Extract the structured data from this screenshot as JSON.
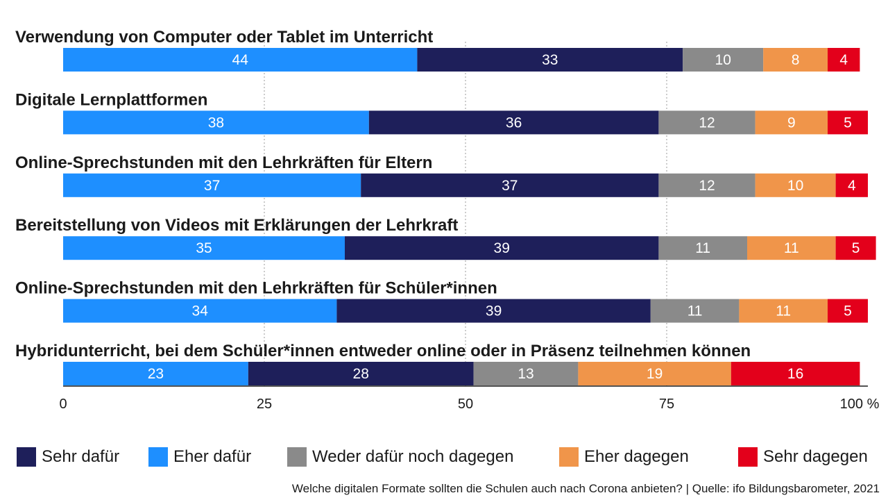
{
  "chart_data": {
    "type": "bar",
    "orientation": "horizontal",
    "stacked": true,
    "categories": [
      "Verwendung von Computer oder Tablet im Unterricht",
      "Digitale Lernplattformen",
      "Online-Sprechstunden mit den Lehrkräften für Eltern",
      "Bereitstellung von Videos mit Erklärungen der Lehrkraft",
      "Online-Sprechstunden mit den Lehrkräften für Schüler*innen",
      "Hybridunterricht, bei dem Schüler*innen entweder online oder in Präsenz teilnehmen können"
    ],
    "series": [
      {
        "name": "Eher dafür",
        "color": "#1e8fff",
        "values": [
          44,
          38,
          37,
          35,
          34,
          23
        ]
      },
      {
        "name": "Sehr dafür",
        "color": "#1e1f5a",
        "values": [
          33,
          36,
          37,
          39,
          39,
          28
        ]
      },
      {
        "name": "Weder dafür noch dagegen",
        "color": "#8a8a8a",
        "values": [
          10,
          12,
          12,
          11,
          11,
          13
        ]
      },
      {
        "name": "Eher dagegen",
        "color": "#f0954a",
        "values": [
          8,
          9,
          10,
          11,
          11,
          19
        ]
      },
      {
        "name": "Sehr dagegen",
        "color": "#e3001b",
        "values": [
          4,
          5,
          4,
          5,
          5,
          16
        ]
      }
    ],
    "xlim": [
      0,
      100
    ],
    "x_ticks": [
      "0",
      "25",
      "50",
      "75",
      "100 %"
    ],
    "grid": true,
    "legend_placement": "bottom",
    "legend_order": [
      "Sehr dafür",
      "Eher dafür",
      "Weder dafür noch dagegen",
      "Eher dagegen",
      "Sehr dagegen"
    ]
  },
  "footer": {
    "text": "Welche digitalen Formate sollten die Schulen auch nach Corona anbieten?  |  Quelle: ifo Bildungsbarometer, 2021"
  }
}
